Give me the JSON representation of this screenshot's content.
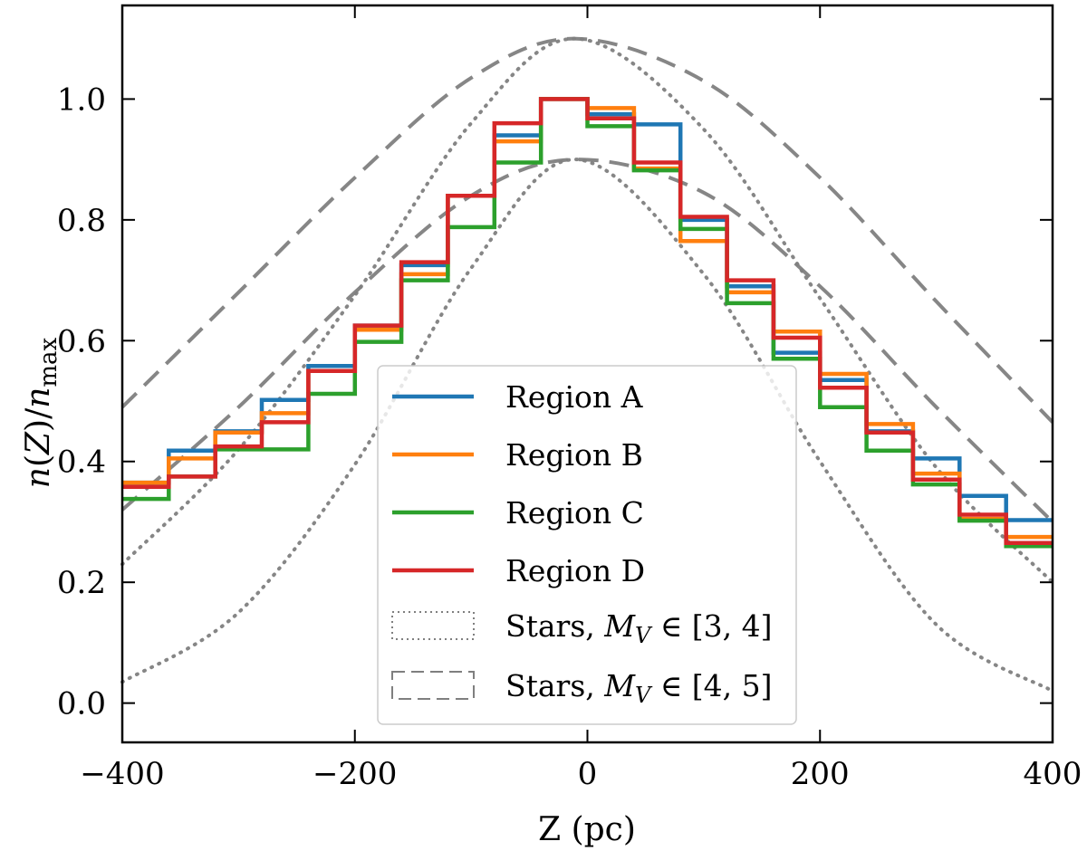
{
  "chart_data": {
    "type": "line",
    "title": "",
    "xlabel": "Z (pc)",
    "ylabel": "n(Z)/n_max",
    "ylabel_parts": {
      "n1": "n",
      "paren_open": "(",
      "Z": "Z",
      "paren_close": ")",
      "slash": "/",
      "n2": "n",
      "sub": "max"
    },
    "xlim": [
      -400,
      400
    ],
    "ylim": [
      -0.065,
      1.155
    ],
    "xticks": [
      -400,
      -200,
      0,
      200,
      400
    ],
    "xtick_labels": [
      "−400",
      "−200",
      "0",
      "200",
      "400"
    ],
    "yticks": [
      0.0,
      0.2,
      0.4,
      0.6,
      0.8,
      1.0
    ],
    "ytick_labels": [
      "0.0",
      "0.2",
      "0.4",
      "0.6",
      "0.8",
      "1.0"
    ],
    "bin_edges": [
      -400,
      -360,
      -320,
      -280,
      -240,
      -200,
      -160,
      -120,
      -80,
      -40,
      0,
      40,
      80,
      120,
      160,
      200,
      240,
      280,
      320,
      360,
      400
    ],
    "series": [
      {
        "name": "Region A",
        "color": "#1f77b4",
        "style": "step",
        "values": [
          0.365,
          0.418,
          0.45,
          0.502,
          0.558,
          0.625,
          0.725,
          0.84,
          0.94,
          1.0,
          0.975,
          0.958,
          0.8,
          0.69,
          0.58,
          0.535,
          0.45,
          0.405,
          0.343,
          0.303
        ]
      },
      {
        "name": "Region B",
        "color": "#ff7f0e",
        "style": "step",
        "values": [
          0.365,
          0.405,
          0.448,
          0.48,
          0.55,
          0.618,
          0.71,
          0.84,
          0.93,
          1.0,
          0.985,
          0.885,
          0.765,
          0.68,
          0.615,
          0.545,
          0.462,
          0.38,
          0.305,
          0.275
        ]
      },
      {
        "name": "Region C",
        "color": "#2ca02c",
        "style": "step",
        "values": [
          0.338,
          0.375,
          0.42,
          0.42,
          0.512,
          0.598,
          0.7,
          0.788,
          0.895,
          1.0,
          0.955,
          0.882,
          0.785,
          0.662,
          0.57,
          0.49,
          0.418,
          0.362,
          0.302,
          0.26
        ]
      },
      {
        "name": "Region D",
        "color": "#d62728",
        "style": "step",
        "values": [
          0.358,
          0.375,
          0.425,
          0.465,
          0.55,
          0.625,
          0.73,
          0.84,
          0.96,
          1.0,
          0.968,
          0.895,
          0.805,
          0.7,
          0.605,
          0.522,
          0.448,
          0.37,
          0.312,
          0.265
        ]
      },
      {
        "name": "Stars, M_V ∈ [3, 4]",
        "color": "#7f7f7f",
        "style": "dotted",
        "curves": [
          {
            "x": [
              -400,
              -300,
              -200,
              -100,
              -10,
              100,
              200,
              300,
              400
            ],
            "y": [
              0.23,
              0.42,
              0.675,
              0.96,
              1.1,
              0.95,
              0.67,
              0.39,
              0.2
            ]
          },
          {
            "x": [
              -400,
              -300,
              -200,
              -100,
              -10,
              100,
              200,
              300,
              400
            ],
            "y": [
              0.035,
              0.15,
              0.395,
              0.72,
              0.9,
              0.71,
              0.4,
              0.13,
              0.02
            ]
          }
        ]
      },
      {
        "name": "Stars, M_V ∈ [4, 5]",
        "color": "#7f7f7f",
        "style": "dashed",
        "curves": [
          {
            "x": [
              -400,
              -300,
              -200,
              -100,
              -10,
              100,
              200,
              300,
              400
            ],
            "y": [
              0.49,
              0.68,
              0.87,
              1.035,
              1.1,
              1.03,
              0.87,
              0.665,
              0.465
            ]
          },
          {
            "x": [
              -400,
              -300,
              -200,
              -100,
              -10,
              100,
              200,
              300,
              400
            ],
            "y": [
              0.32,
              0.49,
              0.68,
              0.84,
              0.9,
              0.845,
              0.69,
              0.49,
              0.3
            ]
          }
        ]
      }
    ],
    "legend": {
      "location": "lower-center",
      "entries": [
        {
          "label": "Region A",
          "color": "#1f77b4",
          "style": "solid"
        },
        {
          "label": "Region B",
          "color": "#ff7f0e",
          "style": "solid"
        },
        {
          "label": "Region C",
          "color": "#2ca02c",
          "style": "solid"
        },
        {
          "label": "Region D",
          "color": "#d62728",
          "style": "solid"
        },
        {
          "label_prefix": "Stars, ",
          "label_math": "M",
          "label_sub": "V",
          "label_suffix": " ∈ [3, 4]",
          "color": "#7f7f7f",
          "style": "dotted"
        },
        {
          "label_prefix": "Stars, ",
          "label_math": "M",
          "label_sub": "V",
          "label_suffix": " ∈ [4, 5]",
          "color": "#7f7f7f",
          "style": "dashed"
        }
      ]
    },
    "grid": false
  }
}
